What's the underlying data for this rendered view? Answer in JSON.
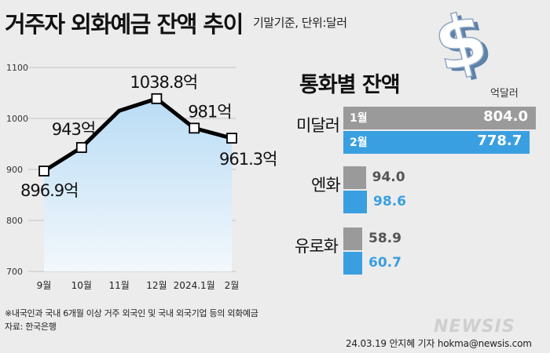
{
  "header": {
    "title": "거주자 외화예금 잔액 추이",
    "subtitle": "기말기준, 단위:달러"
  },
  "chart_data": [
    {
      "type": "line",
      "title": "",
      "categories": [
        "9월",
        "10월",
        "11월",
        "12월",
        "2024.1월",
        "2월"
      ],
      "series": [
        {
          "values": [
            896.9,
            943,
            1015,
            1038.8,
            981,
            961.3
          ],
          "labels": [
            "896.9억",
            "943억",
            "",
            "1038.8억",
            "981억",
            "961.3억"
          ]
        }
      ],
      "ylim": [
        700,
        1100
      ],
      "yticks": [
        700,
        800,
        900,
        1000,
        1100
      ],
      "grid": true,
      "area_fill": true,
      "colors": {
        "line": "#000000",
        "area_top": "#b9dcf5",
        "area_bottom": "#f3f8fc"
      }
    },
    {
      "type": "bar",
      "orientation": "horizontal",
      "title": "통화별 잔액",
      "unit": "억달러",
      "categories": [
        "미달러",
        "엔화",
        "유로화"
      ],
      "series": [
        {
          "name": "1월",
          "values": [
            804.0,
            94.0,
            58.9
          ],
          "labels": [
            "804.0",
            "94.0",
            "58.9"
          ],
          "color": "#9a9a9a"
        },
        {
          "name": "2월",
          "values": [
            778.7,
            98.6,
            60.7
          ],
          "labels": [
            "778.7",
            "98.6",
            "60.7"
          ],
          "color": "#3a9fe0"
        }
      ]
    }
  ],
  "decorations": {
    "dollar_icon": "dollar-sign-icon"
  },
  "footer": {
    "note": "※내국인과 국내 6개월 이상 거주 외국인 및 국내 외국기업 등의 외화예금",
    "source": "자료: 한국은행",
    "credit": "24.03.19 안지혜 기자 hokma@newsis.com",
    "watermark": "NEWSIS"
  }
}
